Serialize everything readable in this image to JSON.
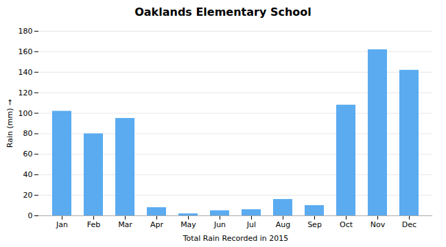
{
  "chart_data": {
    "type": "bar",
    "title": "Oaklands Elementary School",
    "xlabel": "Total Rain Recorded in 2015",
    "ylabel": "Rain (mm)",
    "categories": [
      "Jan",
      "Feb",
      "Mar",
      "Apr",
      "May",
      "Jun",
      "Jul",
      "Aug",
      "Sep",
      "Oct",
      "Nov",
      "Dec"
    ],
    "values": [
      102,
      80,
      95,
      8,
      2,
      5,
      6,
      16,
      10,
      108,
      162,
      142
    ],
    "color": "#5aabf0",
    "ylim": [
      0,
      180
    ],
    "yticks": [
      0,
      20,
      40,
      60,
      80,
      100,
      120,
      140,
      160,
      180
    ],
    "grid": true
  }
}
